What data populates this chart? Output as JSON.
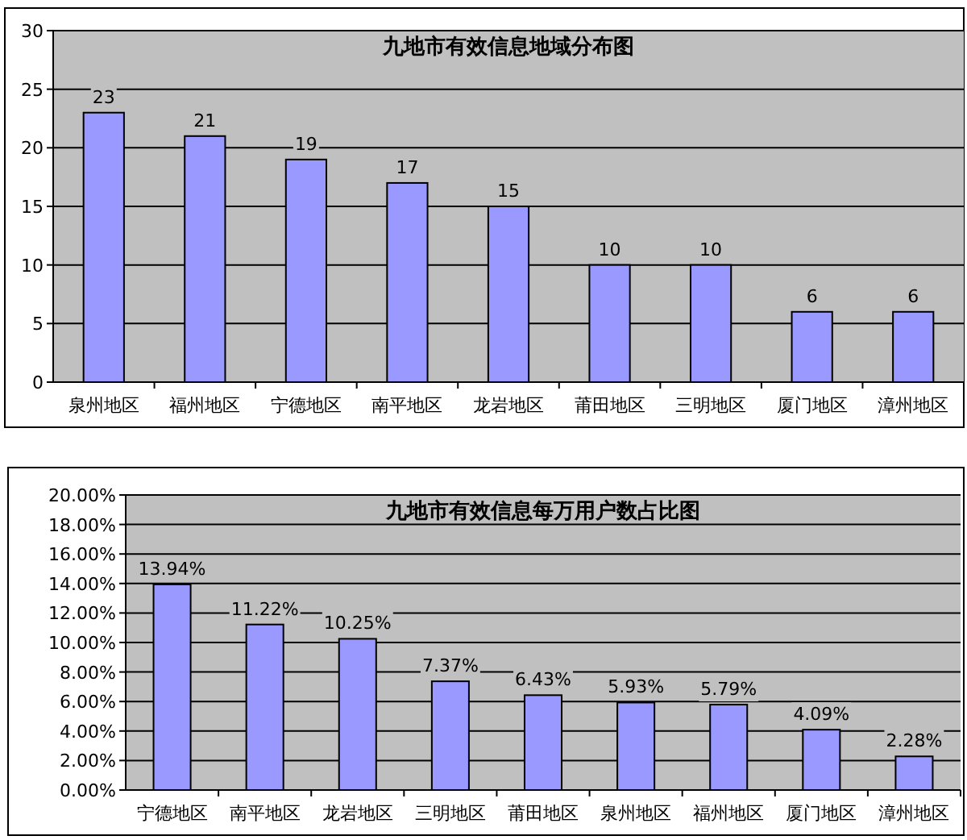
{
  "chart_data": [
    {
      "type": "bar",
      "title": "九地市有效信息地域分布图",
      "categories": [
        "泉州地区",
        "福州地区",
        "宁德地区",
        "南平地区",
        "龙岩地区",
        "莆田地区",
        "三明地区",
        "厦门地区",
        "漳州地区"
      ],
      "values": [
        23,
        21,
        19,
        17,
        15,
        10,
        10,
        6,
        6
      ],
      "color": "#9999ff",
      "ylim": [
        0,
        30
      ],
      "yticks": [
        0,
        5,
        10,
        15,
        20,
        25,
        30
      ],
      "grid": "y",
      "data_labels": true
    },
    {
      "type": "bar",
      "title": "九地市有效信息每万用户数占比图",
      "categories": [
        "宁德地区",
        "南平地区",
        "龙岩地区",
        "三明地区",
        "莆田地区",
        "泉州地区",
        "福州地区",
        "厦门地区",
        "漳州地区"
      ],
      "values": [
        13.94,
        11.22,
        10.25,
        7.37,
        6.43,
        5.93,
        5.79,
        4.09,
        2.28
      ],
      "value_labels": [
        "13.94%",
        "11.22%",
        "10.25%",
        "7.37%",
        "6.43%",
        "5.93%",
        "5.79%",
        "4.09%",
        "2.28%"
      ],
      "color": "#9999ff",
      "ylim": [
        0,
        20
      ],
      "yticks": [
        {
          "value": 0,
          "label": "0.00%"
        },
        {
          "value": 2,
          "label": "2.00%"
        },
        {
          "value": 4,
          "label": "4.00%"
        },
        {
          "value": 6,
          "label": "6.00%"
        },
        {
          "value": 8,
          "label": "8.00%"
        },
        {
          "value": 10,
          "label": "10.00%"
        },
        {
          "value": 12,
          "label": "12.00%"
        },
        {
          "value": 14,
          "label": "14.00%"
        },
        {
          "value": 16,
          "label": "16.00%"
        },
        {
          "value": 18,
          "label": "18.00%"
        },
        {
          "value": 20,
          "label": "20.00%"
        }
      ],
      "grid": "y"
    }
  ]
}
